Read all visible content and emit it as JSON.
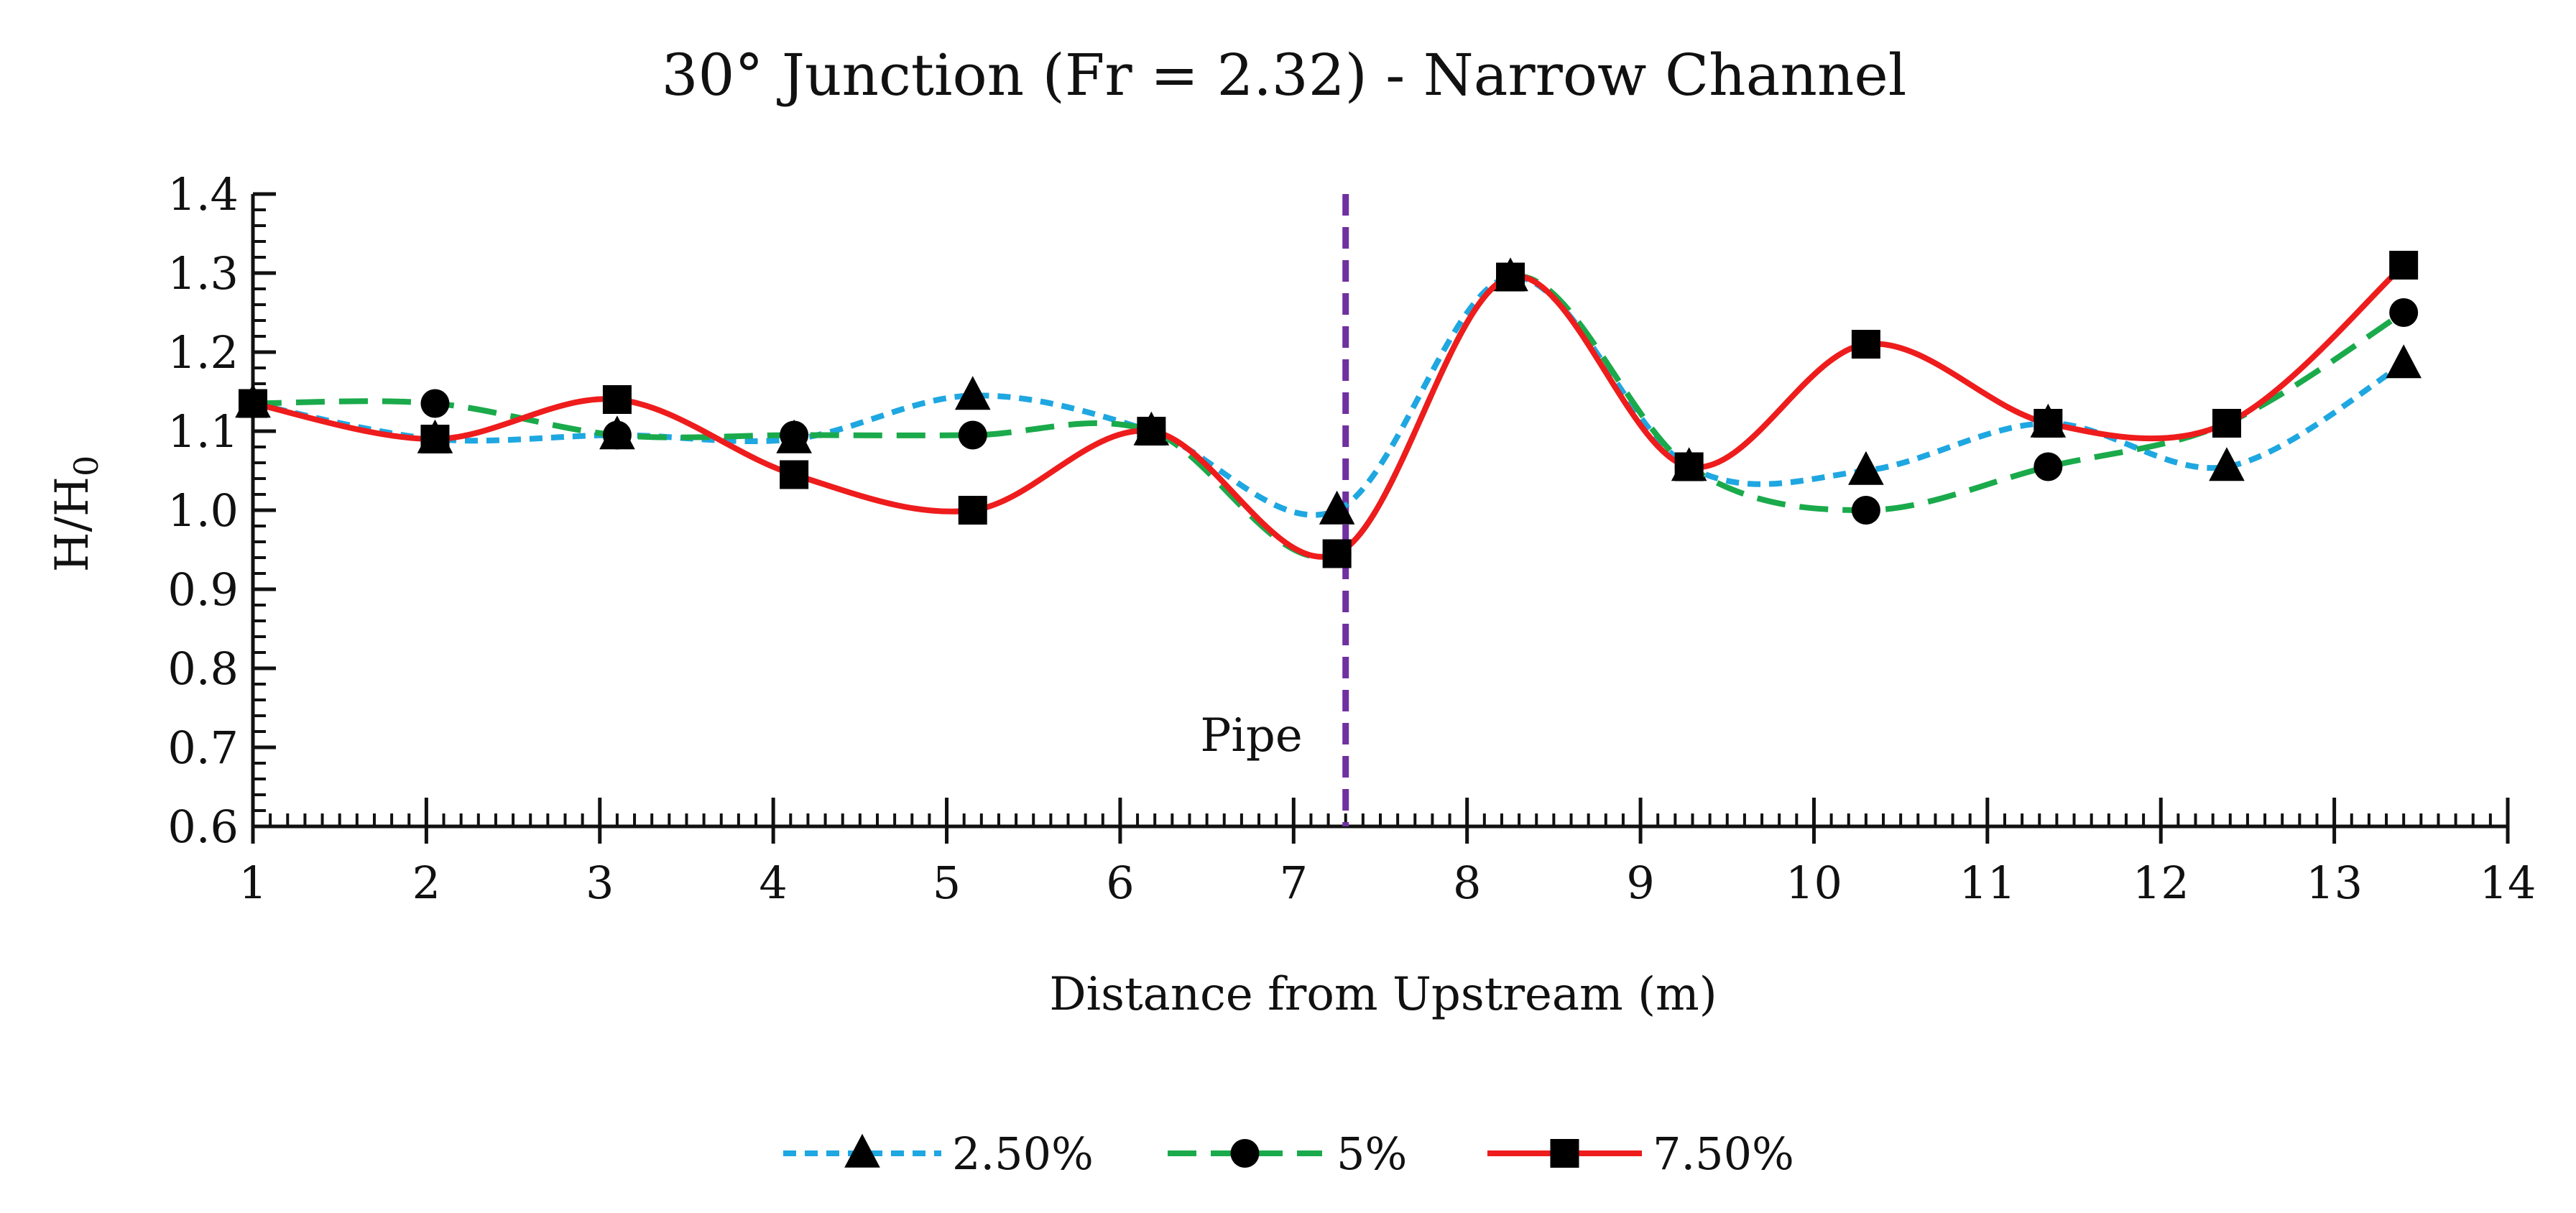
{
  "chart_data": {
    "type": "line",
    "title": "30° Junction (Fr = 2.32) - Narrow Channel",
    "xlabel": "Distance from Upstream (m)",
    "ylabel_main": "H/H",
    "ylabel_sub": "0",
    "xlim": [
      1,
      14
    ],
    "ylim": [
      0.6,
      1.4
    ],
    "xticks": [
      1,
      2,
      3,
      4,
      5,
      6,
      7,
      8,
      9,
      10,
      11,
      12,
      13,
      14
    ],
    "yticks": [
      "0.6",
      "0.7",
      "0.8",
      "0.9",
      "1.0",
      "1.1",
      "1.2",
      "1.3",
      "1.4"
    ],
    "x": [
      1.0,
      2.05,
      3.1,
      4.12,
      5.15,
      6.18,
      7.25,
      8.25,
      9.28,
      10.3,
      11.35,
      12.38,
      13.4
    ],
    "series": [
      {
        "name": "2.50%",
        "color": "#1ea7e1",
        "dash": "short-dash",
        "marker": "triangle",
        "values": [
          1.135,
          1.09,
          1.095,
          1.09,
          1.145,
          1.1,
          1.0,
          1.295,
          1.055,
          1.05,
          1.11,
          1.055,
          1.185
        ]
      },
      {
        "name": "5%",
        "color": "#1aaa4b",
        "dash": "long-dash",
        "marker": "circle",
        "values": [
          1.135,
          1.135,
          1.095,
          1.095,
          1.095,
          1.1,
          0.945,
          1.295,
          1.055,
          1.0,
          1.055,
          1.11,
          1.25
        ]
      },
      {
        "name": "7.50%",
        "color": "#ee1c1c",
        "dash": "solid",
        "marker": "square",
        "values": [
          1.135,
          1.09,
          1.14,
          1.045,
          1.0,
          1.1,
          0.945,
          1.295,
          1.055,
          1.21,
          1.11,
          1.11,
          1.31
        ]
      }
    ],
    "annotation": {
      "label": "Pipe",
      "x": 7.3,
      "color": "#7030a0",
      "style": "dashed vertical line"
    },
    "legend": {
      "position": "bottom-center"
    },
    "grid": false
  }
}
